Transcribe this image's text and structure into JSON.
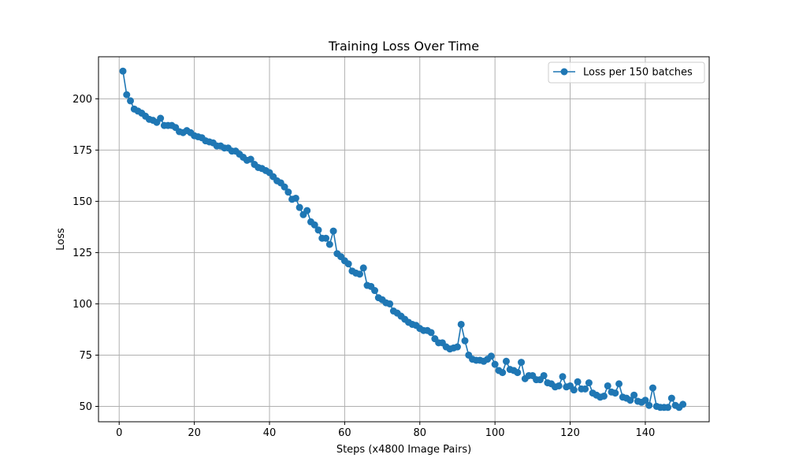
{
  "chart_data": {
    "type": "line",
    "title": "Training Loss Over Time",
    "xlabel": "Steps (x4800 Image Pairs)",
    "ylabel": "Loss",
    "xlim": [
      -5.5,
      157
    ],
    "ylim": [
      42.5,
      220.5
    ],
    "xticks": [
      0,
      20,
      40,
      60,
      80,
      100,
      120,
      140
    ],
    "yticks": [
      50,
      75,
      100,
      125,
      150,
      175,
      200
    ],
    "grid": true,
    "legend_position": "top-right",
    "color": "#1f77b4",
    "series": [
      {
        "name": "Loss per 150 batches",
        "marker": "circle",
        "x": [
          1,
          2,
          3,
          4,
          5,
          6,
          7,
          8,
          9,
          10,
          11,
          12,
          13,
          14,
          15,
          16,
          17,
          18,
          19,
          20,
          21,
          22,
          23,
          24,
          25,
          26,
          27,
          28,
          29,
          30,
          31,
          32,
          33,
          34,
          35,
          36,
          37,
          38,
          39,
          40,
          41,
          42,
          43,
          44,
          45,
          46,
          47,
          48,
          49,
          50,
          51,
          52,
          53,
          54,
          55,
          56,
          57,
          58,
          59,
          60,
          61,
          62,
          63,
          64,
          65,
          66,
          67,
          68,
          69,
          70,
          71,
          72,
          73,
          74,
          75,
          76,
          77,
          78,
          79,
          80,
          81,
          82,
          83,
          84,
          85,
          86,
          87,
          88,
          89,
          90,
          91,
          92,
          93,
          94,
          95,
          96,
          97,
          98,
          99,
          100,
          101,
          102,
          103,
          104,
          105,
          106,
          107,
          108,
          109,
          110,
          111,
          112,
          113,
          114,
          115,
          116,
          117,
          118,
          119,
          120,
          121,
          122,
          123,
          124,
          125,
          126,
          127,
          128,
          129,
          130,
          131,
          132,
          133,
          134,
          135,
          136,
          137,
          138,
          139,
          140,
          141,
          142,
          143,
          144,
          145,
          146,
          147,
          148,
          149,
          150
        ],
        "values": [
          213.5,
          202,
          199,
          195,
          194,
          193,
          191.5,
          190,
          189.5,
          188.5,
          190.5,
          187,
          187,
          187,
          186,
          184,
          183.5,
          184.5,
          183.5,
          182,
          181.5,
          181,
          179.5,
          179,
          178.5,
          177,
          177,
          176,
          176,
          174.5,
          174.5,
          173,
          171.5,
          170,
          170.5,
          168,
          166.5,
          166,
          165,
          164,
          162,
          160,
          159,
          157,
          154.5,
          151,
          151.5,
          147,
          143.5,
          145.5,
          140,
          138.5,
          136,
          132,
          132,
          129,
          135.5,
          124.5,
          123,
          121,
          119.5,
          116,
          115,
          114.5,
          117.5,
          109,
          108.5,
          106.5,
          103,
          102,
          100.5,
          100,
          96.5,
          95.5,
          94,
          92.5,
          91,
          90,
          89.5,
          88,
          87,
          87,
          86,
          83,
          81,
          81,
          79,
          78,
          78.5,
          79,
          90,
          82,
          75,
          73,
          72.5,
          72.5,
          72,
          73,
          74.5,
          70.5,
          67.5,
          66.5,
          72,
          68,
          67.5,
          66.5,
          71.5,
          63.5,
          65,
          65,
          63,
          63,
          65,
          61.5,
          61,
          59.5,
          60,
          64.5,
          59.5,
          60,
          58,
          62,
          58.5,
          58.5,
          61.5,
          56.5,
          55.5,
          54.5,
          55,
          60,
          57,
          56.5,
          61,
          54.5,
          54,
          53,
          55.5,
          52.5,
          52,
          53,
          50.5,
          59,
          50,
          49.5,
          49.5,
          49.5,
          54,
          50.5,
          49.5,
          51
        ]
      }
    ]
  }
}
